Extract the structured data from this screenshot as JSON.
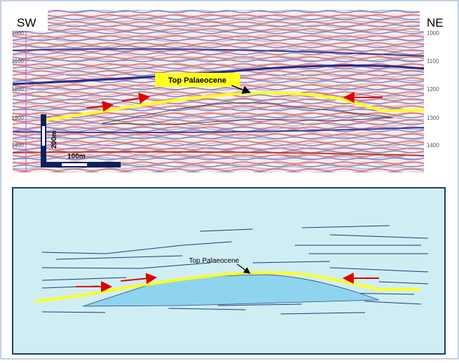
{
  "top_panel": {
    "left_label": "SW",
    "right_label": "NE",
    "horizon_label": "Top Palaeocene",
    "scale_vertical": "200m",
    "scale_horizontal": "100m",
    "left_depths": [
      "1000",
      "1100",
      "1200",
      "1300",
      "1400"
    ],
    "right_depths": [
      "1000",
      "1100",
      "1200",
      "1300",
      "1400"
    ]
  },
  "bottom_panel": {
    "horizon_label": "Top Palaeocene"
  }
}
